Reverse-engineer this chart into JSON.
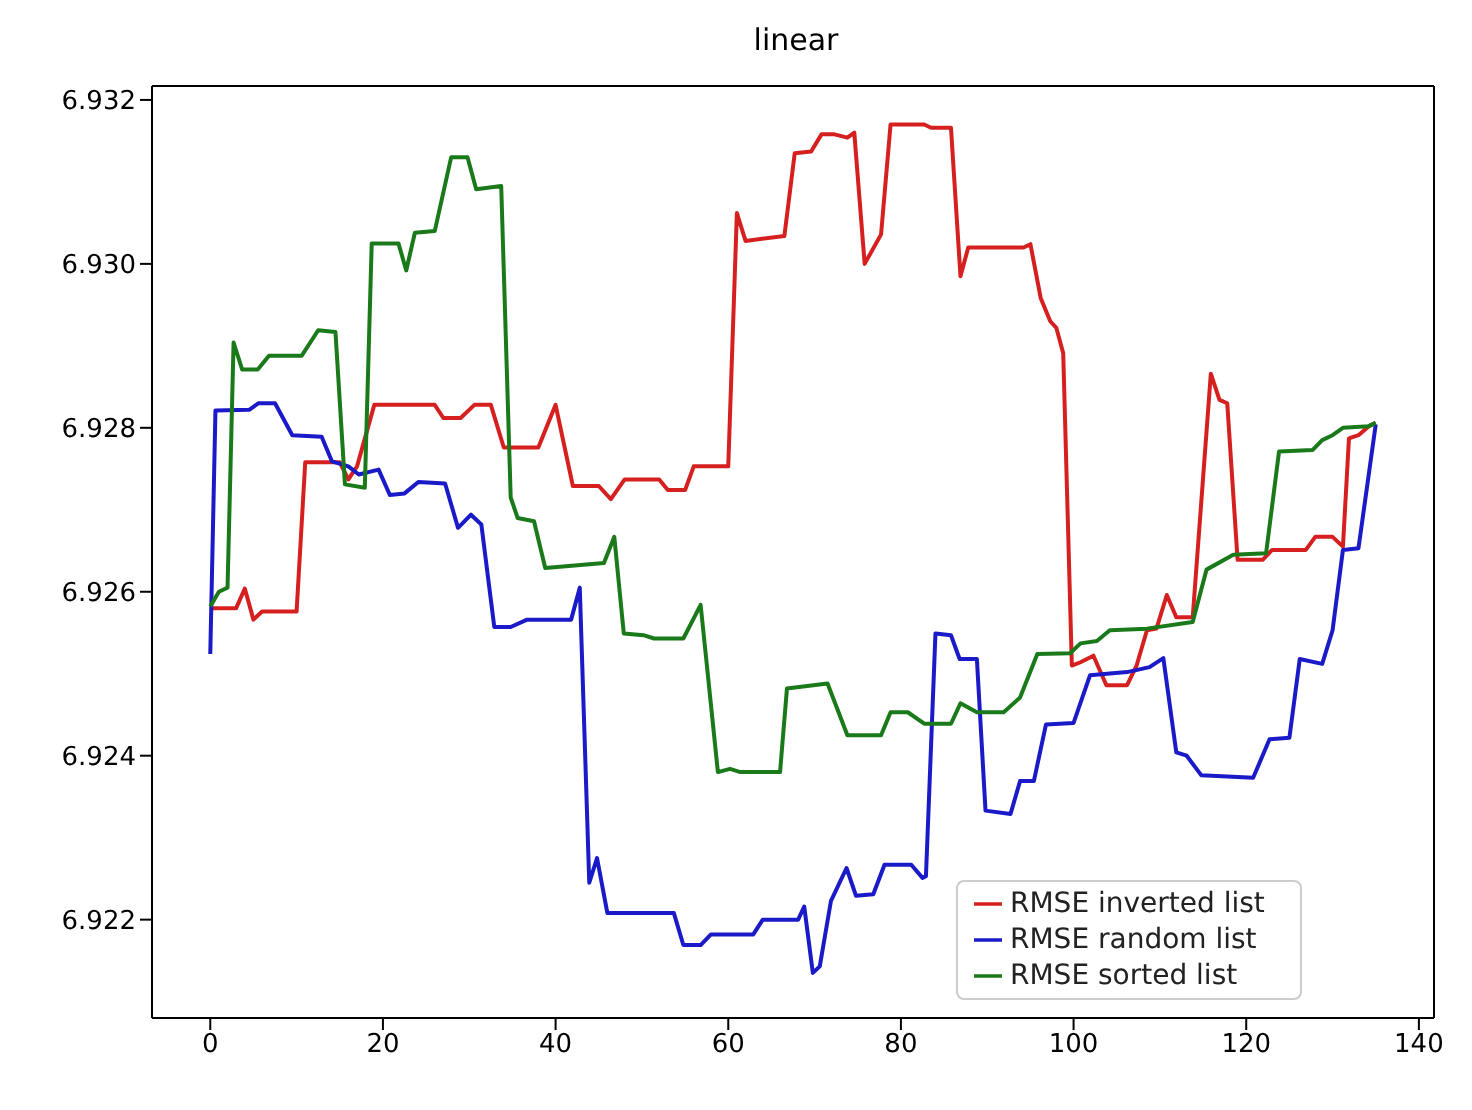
{
  "chart_data": {
    "type": "line",
    "title": "linear",
    "xlim": [
      -6.75,
      141.75
    ],
    "xticks": [
      0,
      20,
      40,
      60,
      80,
      100,
      120,
      140
    ],
    "ylim": [
      6.9208,
      6.93217
    ],
    "yticks": [
      6.922,
      6.924,
      6.926,
      6.928,
      {
        "value": 6.93,
        "label": "6.930"
      },
      6.932
    ],
    "legend": "bottom right",
    "marker": "none",
    "line_style": "solid",
    "series": [
      {
        "name": "RMSE inverted list",
        "color": "#d62020",
        "x": [
          0,
          3,
          4,
          5,
          6,
          10,
          11,
          15,
          16,
          17,
          19,
          26,
          27,
          29,
          30.6,
          32.5,
          34,
          38,
          40,
          42,
          45,
          46.4,
          48,
          52,
          53,
          55,
          56,
          60,
          61,
          62,
          66.5,
          67.7,
          69.6,
          70.8,
          72.3,
          73.8,
          74.6,
          75.8,
          77.7,
          78.8,
          82.7,
          83.5,
          85.8,
          86.9,
          87.8,
          94.2,
          95,
          96.2,
          97.3,
          98,
          98.8,
          99.8,
          100.8,
          102.3,
          103.8,
          106.2,
          107.3,
          108.5,
          109.6,
          110.8,
          111.9,
          113.8,
          115.9,
          116.9,
          117.8,
          119,
          121.9,
          123,
          126.9,
          128,
          130,
          131.2,
          131.9,
          133,
          134.2,
          135
        ],
        "values": [
          6.9258,
          6.9258,
          6.92604,
          6.92566,
          6.92576,
          6.92576,
          6.92758,
          6.92758,
          6.92737,
          6.92753,
          6.92828,
          6.92828,
          6.92812,
          6.92812,
          6.92828,
          6.92828,
          6.92776,
          6.92776,
          6.92828,
          6.92729,
          6.92729,
          6.92713,
          6.92737,
          6.92737,
          6.92724,
          6.92724,
          6.92753,
          6.92753,
          6.93062,
          6.93028,
          6.93034,
          6.93135,
          6.93137,
          6.93158,
          6.93158,
          6.93154,
          6.9316,
          6.93,
          6.93036,
          6.9317,
          6.9317,
          6.93166,
          6.93166,
          6.92985,
          6.9302,
          6.9302,
          6.93024,
          6.92958,
          6.9293,
          6.92922,
          6.92891,
          6.9251,
          6.92514,
          6.92522,
          6.92486,
          6.92486,
          6.9251,
          6.92553,
          6.92555,
          6.92596,
          6.92569,
          6.92569,
          6.92866,
          6.92834,
          6.9283,
          6.92639,
          6.92639,
          6.92651,
          6.92651,
          6.92667,
          6.92667,
          6.92655,
          6.92787,
          6.92791,
          6.92802,
          6.92806
        ]
      },
      {
        "name": "RMSE random list",
        "color": "#1a1ac8",
        "x": [
          0,
          0.6,
          4.5,
          5.6,
          7.5,
          9.5,
          12.9,
          14.1,
          16,
          17.2,
          19.5,
          20.8,
          22.5,
          24.1,
          27.2,
          28.7,
          30.2,
          31.4,
          32.9,
          34.8,
          36.7,
          41.8,
          42.8,
          43.9,
          44.8,
          46,
          53.7,
          54.8,
          56.8,
          58,
          62.9,
          64,
          68.1,
          68.8,
          69.8,
          70.6,
          71.9,
          73.7,
          74.8,
          76.8,
          78.1,
          81.2,
          82.5,
          82.9,
          84,
          85.8,
          86.8,
          88.8,
          89.8,
          92.7,
          93.8,
          95.4,
          96.8,
          100,
          101.9,
          106.2,
          108.8,
          110.4,
          111.9,
          113.1,
          114.8,
          120.8,
          122.7,
          125,
          126.2,
          128.8,
          130,
          131.2,
          133,
          135
        ],
        "values": [
          6.92524,
          6.92821,
          6.92822,
          6.9283,
          6.9283,
          6.92791,
          6.92789,
          6.92759,
          6.92753,
          6.92743,
          6.92749,
          6.92718,
          6.9272,
          6.92734,
          6.92732,
          6.92678,
          6.92694,
          6.92682,
          6.92557,
          6.92557,
          6.92566,
          6.92566,
          6.92605,
          6.92245,
          6.92275,
          6.92208,
          6.92208,
          6.92169,
          6.92169,
          6.92182,
          6.92182,
          6.922,
          6.922,
          6.92216,
          6.92135,
          6.92143,
          6.92223,
          6.92263,
          6.92229,
          6.92231,
          6.92267,
          6.92267,
          6.92251,
          6.92253,
          6.92549,
          6.92547,
          6.92518,
          6.92518,
          6.92333,
          6.92329,
          6.92369,
          6.92369,
          6.92438,
          6.9244,
          6.92498,
          6.92502,
          6.92508,
          6.92519,
          6.92404,
          6.924,
          6.92376,
          6.92373,
          6.9242,
          6.92422,
          6.92518,
          6.92512,
          6.92553,
          6.92651,
          6.92653,
          6.92804
        ]
      },
      {
        "name": "RMSE sorted list",
        "color": "#1a7a1a",
        "x": [
          0,
          1,
          2,
          2.7,
          3.7,
          5.5,
          6.8,
          10.6,
          12.5,
          14.5,
          15.6,
          17.9,
          18.7,
          21.8,
          22.7,
          23.7,
          26,
          27.9,
          29.8,
          30.8,
          33.7,
          34.8,
          35.6,
          37.5,
          38.8,
          45.6,
          46.8,
          47.9,
          50.2,
          51.4,
          54.8,
          56.8,
          58.8,
          60.2,
          61.4,
          66,
          66.8,
          71.5,
          73.8,
          77.7,
          78.8,
          80.8,
          82.7,
          85.8,
          86.9,
          88.8,
          91.9,
          93.8,
          95.8,
          99.6,
          100.8,
          102.7,
          104.2,
          108.5,
          113.8,
          115.4,
          118.5,
          122.3,
          123.8,
          127.7,
          128.8,
          130,
          131.2,
          134.2,
          135
        ],
        "values": [
          6.92582,
          6.926,
          6.92605,
          6.92904,
          6.92871,
          6.92871,
          6.92888,
          6.92888,
          6.92919,
          6.92917,
          6.92731,
          6.92727,
          6.93025,
          6.93025,
          6.92992,
          6.93038,
          6.9304,
          6.9313,
          6.9313,
          6.93091,
          6.93095,
          6.92715,
          6.9269,
          6.92686,
          6.92629,
          6.92635,
          6.92667,
          6.92549,
          6.92547,
          6.92543,
          6.92543,
          6.92584,
          6.9238,
          6.92384,
          6.9238,
          6.9238,
          6.92482,
          6.92488,
          6.92425,
          6.92425,
          6.92453,
          6.92453,
          6.92439,
          6.92439,
          6.92464,
          6.92453,
          6.92453,
          6.92471,
          6.92524,
          6.92525,
          6.92537,
          6.9254,
          6.92553,
          6.92555,
          6.92563,
          6.92627,
          6.92645,
          6.92647,
          6.92771,
          6.92773,
          6.92785,
          6.92791,
          6.928,
          6.92802,
          6.92806
        ]
      }
    ]
  }
}
